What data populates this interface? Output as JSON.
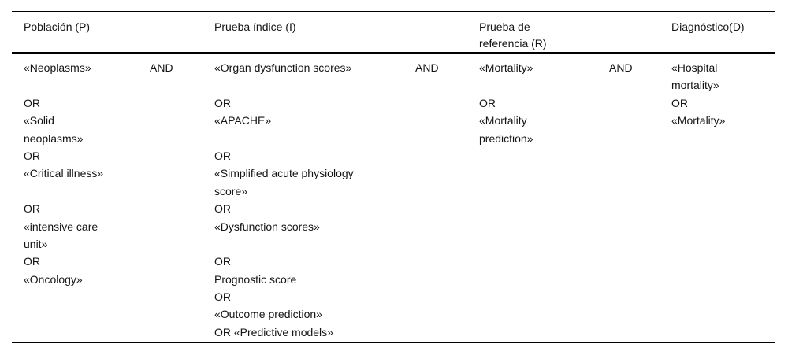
{
  "table": {
    "headers": {
      "poblacion": "Población (P)",
      "prueba_indice": "Prueba índice (I)",
      "prueba_referencia": "Prueba de referencia (R)",
      "diagnostico": "Diagnóstico(D)"
    },
    "connectors": [
      "AND",
      "AND",
      "AND"
    ],
    "columns": {
      "poblacion": [
        "«Neoplasms»",
        "",
        "OR",
        "«Solid",
        "neoplasms»",
        "OR",
        "«Critical illness»",
        "",
        "OR",
        "«intensive care",
        "unit»",
        "OR",
        "«Oncology»"
      ],
      "prueba_indice": [
        "«Organ dysfunction scores»",
        "",
        "OR",
        "«APACHE»",
        "",
        "OR",
        "«Simplified acute physiology",
        "score»",
        "OR",
        "«Dysfunction scores»",
        "",
        "OR",
        "Prognostic score",
        "OR",
        "«Outcome prediction»",
        "OR «Predictive models»"
      ],
      "prueba_referencia": [
        "«Mortality»",
        "",
        "OR",
        "«Mortality",
        "prediction»"
      ],
      "diagnostico": [
        "«Hospital",
        "mortality»",
        "OR",
        "«Mortality»"
      ]
    },
    "colors": {
      "text": "#141414",
      "rule": "#000000",
      "background": "#ffffff"
    }
  }
}
